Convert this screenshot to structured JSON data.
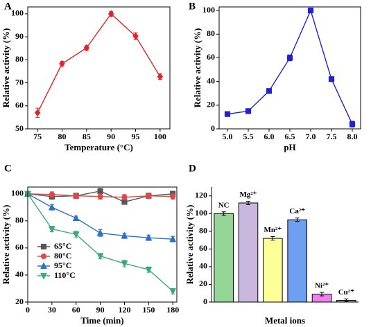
{
  "chart_data": [
    {
      "type": "line",
      "label": "A",
      "xlabel": "Temperature (°C)",
      "ylabel": "Relative activity (%)",
      "x": [
        75,
        80,
        85,
        90,
        95,
        100
      ],
      "series": [
        {
          "color": "#e0242a",
          "marker": "diamond",
          "values": [
            57,
            78.3,
            85.2,
            100,
            90.3,
            72.7
          ],
          "errors": [
            2,
            1,
            1,
            1,
            1.5,
            1.2
          ]
        }
      ],
      "xlim": [
        73,
        102
      ],
      "xticks": [
        75,
        80,
        85,
        90,
        95,
        100
      ],
      "ylim": [
        50,
        103
      ],
      "yticks": [
        50,
        60,
        70,
        80,
        90,
        100
      ]
    },
    {
      "type": "line",
      "label": "B",
      "xlabel": "pH",
      "ylabel": "Relative activity (%)",
      "x": [
        5,
        5.5,
        6,
        6.5,
        7,
        7.5,
        8
      ],
      "series": [
        {
          "color": "#2222cc",
          "marker": "square",
          "values": [
            12.5,
            15,
            32,
            60,
            100,
            42,
            4
          ],
          "errors": [
            2,
            2,
            2,
            2.5,
            2,
            2,
            2.5
          ]
        }
      ],
      "xlim": [
        4.8,
        8.2
      ],
      "xticks": [
        {
          "value": 5,
          "label": "5.0"
        },
        {
          "value": 5.5,
          "label": "5.5"
        },
        {
          "value": 6,
          "label": "6.0"
        },
        {
          "value": 6.5,
          "label": "6.5"
        },
        {
          "value": 7,
          "label": "7.0"
        },
        {
          "value": 7.5,
          "label": "7.5"
        },
        {
          "value": 8,
          "label": "8.0"
        }
      ],
      "ylim": [
        0,
        103
      ],
      "yticks": [
        0,
        20,
        40,
        60,
        80,
        100
      ]
    },
    {
      "type": "line",
      "label": "C",
      "xlabel": "Time (min)",
      "ylabel": "Relative activity (%)",
      "x": [
        0,
        30,
        60,
        90,
        120,
        150,
        180
      ],
      "series": [
        {
          "name": "65°C",
          "color": "#555555",
          "marker": "square",
          "values": [
            100,
            98,
            98.5,
            102,
            94,
            98.5,
            100
          ],
          "errors": [
            1,
            2,
            2,
            2,
            1.5,
            2,
            2
          ]
        },
        {
          "name": "80°C",
          "color": "#e04848",
          "marker": "circle",
          "values": [
            100,
            99.5,
            98.5,
            98,
            97.5,
            98.5,
            98
          ],
          "errors": [
            1,
            2,
            2,
            2,
            2,
            2,
            2
          ]
        },
        {
          "name": "95°C",
          "color": "#2a70c8",
          "marker": "triangle-up",
          "values": [
            100,
            90,
            82,
            71,
            69,
            67.5,
            66.5
          ],
          "errors": [
            1,
            2,
            1.5,
            2.5,
            2,
            2,
            2
          ]
        },
        {
          "name": "110°C",
          "color": "#3aaa7a",
          "marker": "triangle-down",
          "values": [
            100,
            74,
            70,
            54,
            48.5,
            44,
            28
          ],
          "errors": [
            1,
            2,
            2.5,
            2,
            2.5,
            2,
            2
          ]
        }
      ],
      "xlim": [
        0,
        185
      ],
      "xticks": [
        0,
        30,
        60,
        90,
        120,
        150,
        180
      ],
      "ylim": [
        20,
        105
      ],
      "yticks": [
        20,
        40,
        60,
        80,
        100
      ],
      "legend": "lower left"
    },
    {
      "type": "bar",
      "label": "D",
      "xlabel": "Metal ions",
      "ylabel": "Relative activity (%)",
      "categories": [
        "NC",
        "Mg²⁺",
        "Mn²⁺",
        "Ca²⁺",
        "Ni²⁺",
        "Cu²⁺"
      ],
      "values": [
        100,
        112,
        72,
        93,
        9,
        2
      ],
      "errors": [
        2,
        2,
        2,
        2,
        2,
        1.5
      ],
      "colors": [
        "#95d595",
        "#c9b7dd",
        "#ffff99",
        "#6f9ff0",
        "#f07ff0",
        "#a8a8a8"
      ],
      "ylim": [
        0,
        130
      ],
      "yticks": [
        0,
        20,
        40,
        60,
        80,
        100,
        120
      ]
    }
  ]
}
